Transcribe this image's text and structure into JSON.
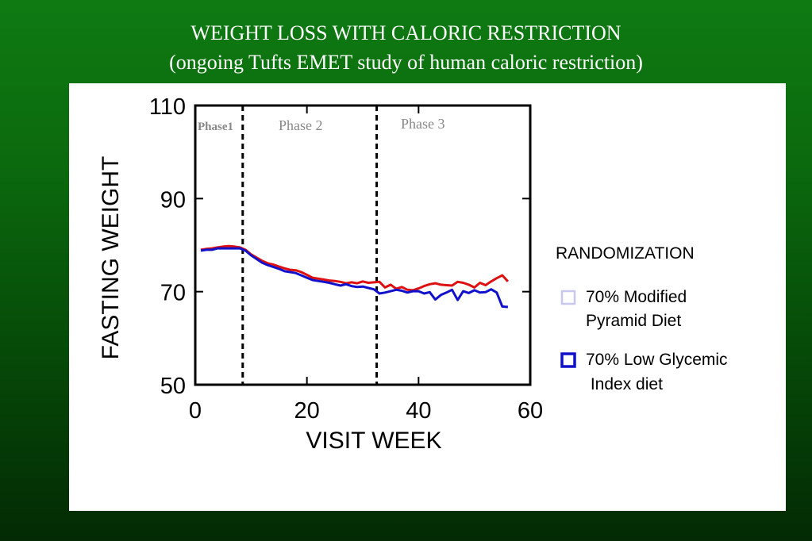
{
  "title": {
    "line1": "WEIGHT LOSS WITH CALORIC RESTRICTION",
    "line2": "(ongoing Tufts EMET study of human caloric restriction)"
  },
  "chart_data": {
    "type": "line",
    "xlabel": "VISIT WEEK",
    "ylabel": "FASTING WEIGHT",
    "xlim": [
      0,
      60
    ],
    "ylim": [
      50,
      110
    ],
    "xticks": [
      0,
      20,
      40,
      60
    ],
    "yticks": [
      50,
      70,
      90,
      110
    ],
    "grid": false,
    "phase_dividers": [
      8.5,
      32.5
    ],
    "phase_labels": [
      "Phase1",
      "Phase 2",
      "Phase 3"
    ],
    "legend": {
      "title": "RANDOMIZATION",
      "placement": "right",
      "entries": [
        {
          "line1": "70% Modified",
          "line2": "Pyramid Diet",
          "color": "#c8c8ee"
        },
        {
          "line1": "70% Low Glycemic",
          "line2": " Index diet",
          "color": "#1010c8"
        }
      ]
    },
    "series": [
      {
        "color": "#dd1111",
        "points": [
          [
            1,
            79
          ],
          [
            2,
            79.2
          ],
          [
            3,
            79.3
          ],
          [
            4,
            79.5
          ],
          [
            5,
            79.7
          ],
          [
            6,
            79.8
          ],
          [
            7,
            79.7
          ],
          [
            8,
            79.5
          ],
          [
            9,
            79
          ],
          [
            10,
            78
          ],
          [
            11,
            77.3
          ],
          [
            12,
            76.6
          ],
          [
            13,
            76.1
          ],
          [
            14,
            75.8
          ],
          [
            15,
            75.4
          ],
          [
            16,
            75
          ],
          [
            17,
            74.7
          ],
          [
            18,
            74.6
          ],
          [
            19,
            74.2
          ],
          [
            20,
            73.6
          ],
          [
            21,
            73
          ],
          [
            22,
            72.8
          ],
          [
            23,
            72.6
          ],
          [
            24,
            72.4
          ],
          [
            25,
            72.3
          ],
          [
            26,
            72.1
          ],
          [
            27,
            71.8
          ],
          [
            28,
            72
          ],
          [
            29,
            71.8
          ],
          [
            30,
            72.2
          ],
          [
            31,
            71.9
          ],
          [
            32,
            72
          ],
          [
            33,
            72.1
          ],
          [
            34,
            70.9
          ],
          [
            35,
            71.5
          ],
          [
            36,
            70.6
          ],
          [
            37,
            71
          ],
          [
            38,
            70.4
          ],
          [
            39,
            70.3
          ],
          [
            40,
            70.7
          ],
          [
            41,
            71.2
          ],
          [
            42,
            71.6
          ],
          [
            43,
            71.8
          ],
          [
            44,
            71.5
          ],
          [
            45,
            71.4
          ],
          [
            46,
            71.3
          ],
          [
            47,
            72.1
          ],
          [
            48,
            71.9
          ],
          [
            49,
            71.5
          ],
          [
            50,
            70.9
          ],
          [
            51,
            71.9
          ],
          [
            52,
            71.4
          ],
          [
            53,
            72.2
          ],
          [
            54,
            72.9
          ],
          [
            55,
            73.5
          ],
          [
            56,
            72.2
          ]
        ]
      },
      {
        "color": "#1111cc",
        "points": [
          [
            1,
            78.8
          ],
          [
            2,
            79
          ],
          [
            3,
            79
          ],
          [
            4,
            79.3
          ],
          [
            5,
            79.3
          ],
          [
            6,
            79.3
          ],
          [
            7,
            79.3
          ],
          [
            8,
            79.3
          ],
          [
            9,
            78.8
          ],
          [
            10,
            77.8
          ],
          [
            11,
            77
          ],
          [
            12,
            76.2
          ],
          [
            13,
            75.7
          ],
          [
            14,
            75.3
          ],
          [
            15,
            74.9
          ],
          [
            16,
            74.4
          ],
          [
            17,
            74.2
          ],
          [
            18,
            74
          ],
          [
            19,
            73.5
          ],
          [
            20,
            73
          ],
          [
            21,
            72.5
          ],
          [
            22,
            72.3
          ],
          [
            23,
            72.1
          ],
          [
            24,
            71.9
          ],
          [
            25,
            71.6
          ],
          [
            26,
            71.3
          ],
          [
            27,
            71.6
          ],
          [
            28,
            71.2
          ],
          [
            29,
            71
          ],
          [
            30,
            71.1
          ],
          [
            31,
            70.8
          ],
          [
            32,
            70.5
          ],
          [
            33,
            69.6
          ],
          [
            34,
            69.8
          ],
          [
            35,
            70.1
          ],
          [
            36,
            70.4
          ],
          [
            37,
            70.2
          ],
          [
            38,
            69.8
          ],
          [
            39,
            70.1
          ],
          [
            40,
            70.1
          ],
          [
            41,
            69.6
          ],
          [
            42,
            69.9
          ],
          [
            43,
            68.3
          ],
          [
            44,
            69.3
          ],
          [
            45,
            69.8
          ],
          [
            46,
            70.4
          ],
          [
            47,
            68.2
          ],
          [
            48,
            70.1
          ],
          [
            49,
            69.7
          ],
          [
            50,
            70.3
          ],
          [
            51,
            69.8
          ],
          [
            52,
            69.9
          ],
          [
            53,
            70.5
          ],
          [
            54,
            69.8
          ],
          [
            55,
            66.8
          ],
          [
            56,
            66.7
          ]
        ]
      }
    ]
  }
}
